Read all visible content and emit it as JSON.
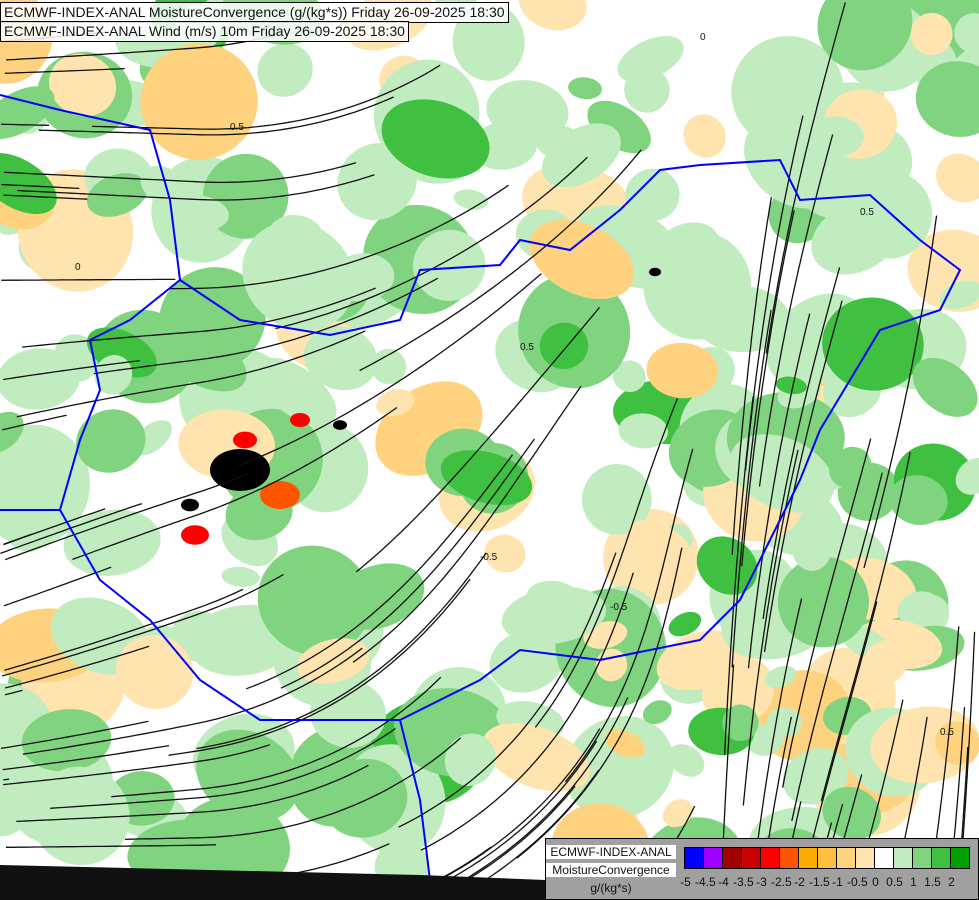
{
  "titles": {
    "line1": "ECMWF-INDEX-ANAL MoistureConvergence (g/(kg*s)) Friday 26-09-2025 18:30",
    "line2": "ECMWF-INDEX-ANAL Wind (m/s) 10m Friday 26-09-2025 18:30"
  },
  "legend": {
    "model": "ECMWF-INDEX-ANAL",
    "parameter": "MoistureConvergence",
    "unit": "g/(kg*s)",
    "ticks": [
      "-5",
      "-4.5",
      "-4",
      "-3.5",
      "-3",
      "-2.5",
      "-2",
      "-1.5",
      "-1",
      "-0.5",
      "0",
      "0.5",
      "1",
      "1.5",
      "2"
    ],
    "colors": [
      "#0000ff",
      "#a000ff",
      "#a00000",
      "#cc0000",
      "#ff0000",
      "#ff5500",
      "#ffaa00",
      "#ffbf40",
      "#ffd27f",
      "#ffe4b0",
      "#ffffff",
      "#c0ecc0",
      "#80d480",
      "#40c040",
      "#00a000"
    ]
  },
  "map": {
    "border_color": "#0000ff",
    "river_color": "#5a78ff",
    "streamline_color": "#111111",
    "contour_labels": [
      "0",
      "0.5",
      "-0.5"
    ]
  }
}
